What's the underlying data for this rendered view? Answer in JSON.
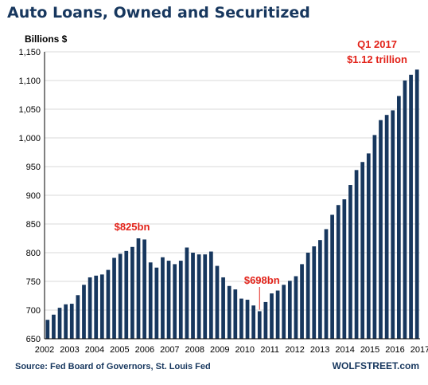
{
  "chart_data": {
    "type": "bar",
    "title": "Auto Loans, Owned and Securitized",
    "ylabel": "Billions $",
    "ylim": [
      650,
      1150
    ],
    "yticks": [
      650,
      700,
      750,
      800,
      850,
      900,
      950,
      1000,
      1050,
      1100,
      1150
    ],
    "ytick_labels": [
      "650",
      "700",
      "750",
      "800",
      "850",
      "900",
      "950",
      "1,000",
      "1,050",
      "1,100",
      "1,150"
    ],
    "xtick_labels": [
      "2002",
      "2003",
      "2004",
      "2005",
      "2006",
      "2007",
      "2008",
      "2009",
      "2010",
      "2011",
      "2012",
      "2013",
      "2014",
      "2015",
      "2016",
      "2017"
    ],
    "grid": true,
    "values": [
      683,
      692,
      704,
      710,
      711,
      726,
      744,
      757,
      760,
      762,
      770,
      791,
      798,
      803,
      810,
      825,
      823,
      783,
      774,
      792,
      786,
      780,
      786,
      809,
      800,
      797,
      797,
      802,
      777,
      757,
      742,
      736,
      720,
      718,
      708,
      698,
      714,
      729,
      734,
      744,
      751,
      759,
      780,
      800,
      811,
      822,
      841,
      866,
      883,
      893,
      918,
      944,
      958,
      973,
      1005,
      1031,
      1040,
      1048,
      1073,
      1100,
      1110,
      1119
    ],
    "annotations": [
      {
        "text": "$825bn",
        "index": 15
      },
      {
        "text": "$698bn",
        "index": 35
      },
      {
        "text": "Q1 2017",
        "index": 61
      },
      {
        "text": "$1.12 trillion",
        "index": 61
      }
    ],
    "colors": {
      "bar": "#17375e",
      "annotation": "#e2231a",
      "title": "#17375e"
    }
  },
  "footer": {
    "source": "Source: Fed Board of Governors, St. Louis Fed",
    "brand": "WOLFSTREET.com"
  }
}
